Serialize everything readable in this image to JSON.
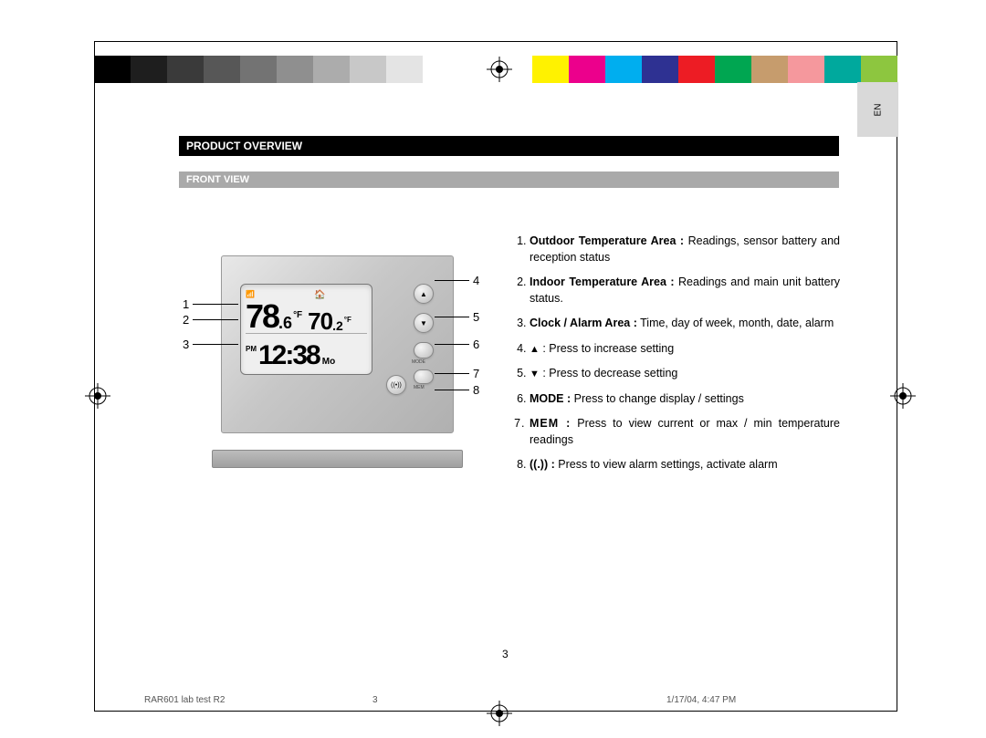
{
  "lang_tab": "EN",
  "header": "PRODUCT OVERVIEW",
  "subheader": "FRONT VIEW",
  "calibration": {
    "grays": [
      "#000000",
      "#1e1e1e",
      "#3a3a3a",
      "#575757",
      "#737373",
      "#8f8f8f",
      "#acacac",
      "#c8c8c8",
      "#e4e4e4",
      "#ffffff",
      "#ffffff"
    ],
    "colors": [
      "#ffffff",
      "#fff200",
      "#ec008c",
      "#00aeef",
      "#2e3192",
      "#ed1c24",
      "#00a651",
      "#c69c6d",
      "#f5989d",
      "#00a99d",
      "#8dc63f"
    ]
  },
  "device": {
    "display": {
      "outdoor_temp_int": "78",
      "outdoor_temp_dec": ".6",
      "outdoor_unit": "°F",
      "indoor_temp_int": "70",
      "indoor_temp_dec": ".2",
      "indoor_unit": "°F",
      "pm": "PM",
      "time": "12:38",
      "day": "Mo"
    },
    "buttons": {
      "up": "▲",
      "down": "▼",
      "alarm": "((•))",
      "mode_label": "MODE",
      "mem_label": "MEM"
    }
  },
  "callouts": {
    "left": {
      "n1": "1",
      "n2": "2",
      "n3": "3"
    },
    "right": {
      "n4": "4",
      "n5": "5",
      "n6": "6",
      "n7": "7",
      "n8": "8"
    }
  },
  "descriptions": {
    "i1": {
      "bold": "Outdoor Temperature Area :",
      "text": " Readings, sensor battery and reception status"
    },
    "i2": {
      "bold": "Indoor Temperature Area :",
      "text": " Readings and main unit battery status."
    },
    "i3": {
      "bold": "Clock / Alarm Area :",
      "text": " Time, day of week, month, date, alarm"
    },
    "i4": {
      "glyph": "▲",
      "text": " : Press to increase setting"
    },
    "i5": {
      "glyph": "▼",
      "text": " : Press to decrease setting"
    },
    "i6": {
      "bold": "MODE :",
      "text": " Press to change display / settings"
    },
    "i7": {
      "bold": "MEM :",
      "text": " Press to view current or max / min temperature readings"
    },
    "i8": {
      "bold": "((.)) :",
      "text": " Press to view alarm settings, activate alarm"
    }
  },
  "page_number": "3",
  "footer": {
    "left": "RAR601 lab test R2",
    "mid": "3",
    "right": "1/17/04, 4:47 PM"
  }
}
